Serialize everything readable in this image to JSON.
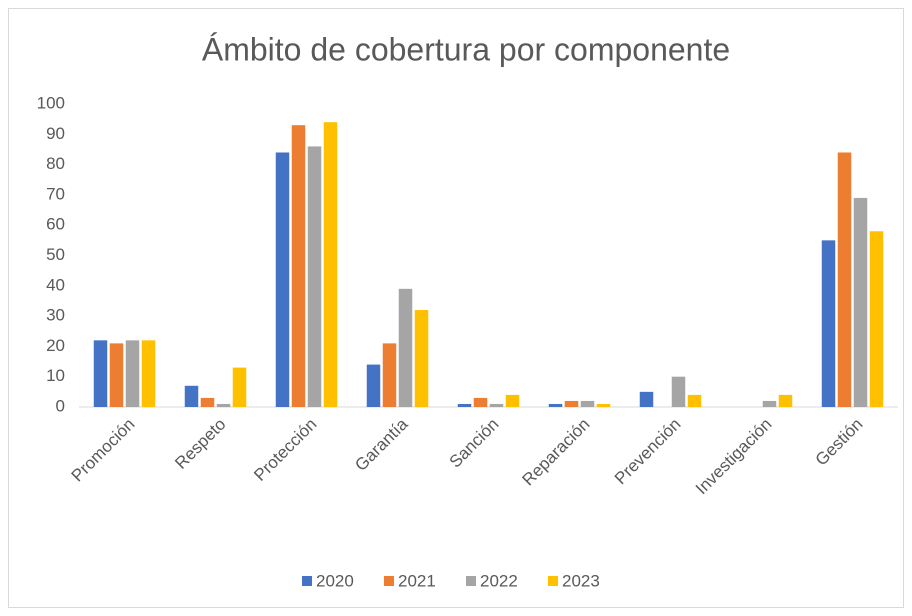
{
  "chart_data": {
    "type": "bar",
    "title": "Ámbito de cobertura por componente",
    "categories": [
      "Promoción",
      "Respeto",
      "Protección",
      "Garantía",
      "Sanción",
      "Reparación",
      "Prevención",
      "Investigación",
      "Gestión"
    ],
    "series": [
      {
        "name": "2020",
        "color": "#4472c4",
        "values": [
          22,
          7,
          84,
          14,
          1,
          1,
          5,
          0,
          55
        ]
      },
      {
        "name": "2021",
        "color": "#ed7d31",
        "values": [
          21,
          3,
          93,
          21,
          3,
          2,
          0,
          0,
          84
        ]
      },
      {
        "name": "2022",
        "color": "#a5a5a5",
        "values": [
          22,
          1,
          86,
          39,
          1,
          2,
          10,
          2,
          69
        ]
      },
      {
        "name": "2023",
        "color": "#ffc000",
        "values": [
          22,
          13,
          94,
          32,
          4,
          1,
          4,
          4,
          58
        ]
      }
    ],
    "ylim": [
      0,
      100
    ],
    "yticks": [
      0,
      10,
      20,
      30,
      40,
      50,
      60,
      70,
      80,
      90,
      100
    ],
    "grid": false,
    "legend": "bottom"
  }
}
